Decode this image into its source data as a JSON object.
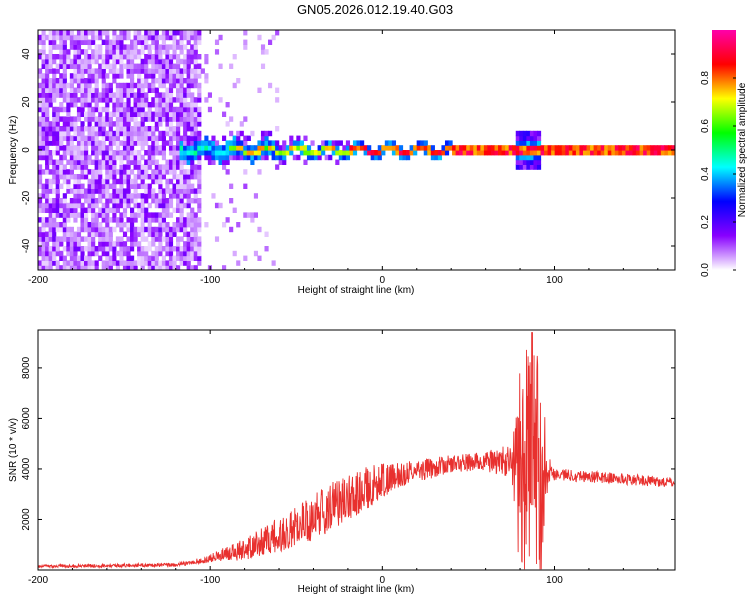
{
  "title": "GN05.2026.012.19.40.G03",
  "chart_data": [
    {
      "type": "heatmap",
      "panel": "spectrogram",
      "xlabel": "Height of straight line (km)",
      "ylabel": "Frequency (Hz)",
      "xlim": [
        -200,
        170
      ],
      "ylim": [
        -50,
        50
      ],
      "xticks": [
        -200,
        -100,
        0,
        100
      ],
      "yticks": [
        -40,
        -20,
        0,
        20,
        40
      ],
      "colorbar": {
        "label": "Normalized spectral amplitude",
        "range": [
          0.0,
          1.0
        ],
        "ticks": [
          0.0,
          0.2,
          0.4,
          0.6,
          0.8
        ],
        "colors": [
          "#ffffff",
          "#8800ff",
          "#0000ff",
          "#00ffff",
          "#00ff00",
          "#ffff00",
          "#ff0000",
          "#ff00aa"
        ]
      },
      "features": {
        "noise_region_x": [
          -200,
          -105
        ],
        "sparse_noise_x": [
          -105,
          -60
        ],
        "carrier_start_x": -118,
        "carrier_frequency_hz": 0,
        "ripple_x": [
          78,
          92
        ]
      }
    },
    {
      "type": "line",
      "panel": "snr",
      "xlabel": "Height of straight line (km)",
      "ylabel": "SNR (10 * v/v)",
      "xlim": [
        -200,
        170
      ],
      "ylim": [
        0,
        9500
      ],
      "xticks": [
        -200,
        -100,
        0,
        100
      ],
      "yticks": [
        2000,
        4000,
        6000,
        8000
      ],
      "color": "#e8302e",
      "envelope": {
        "x": [
          -200,
          -120,
          -100,
          -80,
          -60,
          -40,
          -20,
          0,
          20,
          40,
          60,
          70,
          78,
          84,
          88,
          92,
          96,
          100,
          120,
          140,
          170
        ],
        "y": [
          150,
          200,
          400,
          700,
          1200,
          1800,
          2600,
          3300,
          3900,
          4200,
          4300,
          4300,
          4200,
          4200,
          4200,
          4200,
          4000,
          3800,
          3700,
          3600,
          3450
        ]
      },
      "noise_amplitude": {
        "x": [
          -200,
          -110,
          -90,
          -60,
          -30,
          -10,
          10,
          40,
          60,
          75,
          80,
          92,
          96,
          100,
          170
        ],
        "y": [
          60,
          80,
          300,
          700,
          1000,
          900,
          500,
          350,
          400,
          700,
          3500,
          3500,
          600,
          250,
          200
        ]
      },
      "peak": {
        "x": 87,
        "y": 9400
      }
    }
  ]
}
